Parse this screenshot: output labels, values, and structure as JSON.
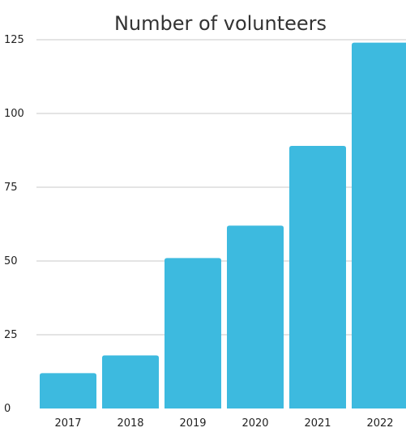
{
  "chart_data": {
    "type": "bar",
    "title": "Number of volunteers",
    "xlabel": "",
    "ylabel": "",
    "categories": [
      "2017",
      "2018",
      "2019",
      "2020",
      "2021",
      "2022"
    ],
    "values": [
      12,
      18,
      51,
      62,
      89,
      124
    ],
    "ylim": [
      0,
      125
    ],
    "yticks": [
      "0",
      "25",
      "50",
      "75",
      "100",
      "125"
    ],
    "grid": true,
    "legend": "none",
    "bar_color": "#3DBADF"
  }
}
